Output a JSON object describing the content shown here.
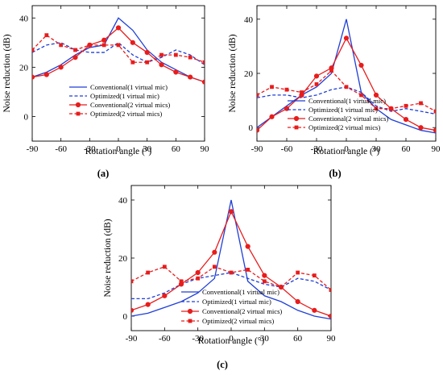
{
  "chart_data": [
    {
      "type": "line",
      "panel_label": "(a)",
      "xlabel": "Rotation angle (°)",
      "ylabel": "Noise reduction (dB)",
      "xlim": [
        -90,
        90
      ],
      "ylim": [
        -10,
        45
      ],
      "xticks": [
        -90,
        -60,
        -30,
        0,
        30,
        60,
        90
      ],
      "yticks": [
        0,
        20,
        40
      ],
      "legend_position": "bottom-right",
      "series": [
        {
          "name": "Conventional(1 virtual mic)",
          "color": "#1f3fd6",
          "dash": "solid",
          "marker": "none",
          "x": [
            -90,
            -75,
            -60,
            -45,
            -30,
            -15,
            0,
            15,
            30,
            45,
            60,
            75,
            90
          ],
          "y": [
            16,
            18,
            21,
            25,
            28,
            29,
            40,
            35,
            27,
            22,
            19,
            16,
            14
          ]
        },
        {
          "name": "Optimized(1 virtual mic)",
          "color": "#1f3fd6",
          "dash": "dashed",
          "marker": "none",
          "x": [
            -90,
            -75,
            -60,
            -45,
            -30,
            -15,
            0,
            15,
            30,
            45,
            60,
            75,
            90
          ],
          "y": [
            26,
            29,
            30,
            27,
            26,
            26,
            30,
            25,
            22,
            24,
            27,
            25,
            21
          ]
        },
        {
          "name": "Conventional(2 virtual mics)",
          "color": "#e81c1c",
          "dash": "solid",
          "marker": "circle",
          "x": [
            -90,
            -75,
            -60,
            -45,
            -30,
            -15,
            0,
            15,
            30,
            45,
            60,
            75,
            90
          ],
          "y": [
            16,
            17,
            20,
            24,
            29,
            31,
            36,
            30,
            26,
            21,
            18,
            16,
            14
          ]
        },
        {
          "name": "Optimized(2 virtual mics)",
          "color": "#e81c1c",
          "dash": "dashed",
          "marker": "square",
          "x": [
            -90,
            -75,
            -60,
            -45,
            -30,
            -15,
            0,
            15,
            30,
            45,
            60,
            75,
            90
          ],
          "y": [
            27,
            33,
            29,
            27,
            29,
            29,
            29,
            22,
            22,
            25,
            25,
            24,
            22
          ]
        }
      ]
    },
    {
      "type": "line",
      "panel_label": "(b)",
      "xlabel": "Rotation angle (°)",
      "ylabel": "Noise reduction (dB)",
      "xlim": [
        -90,
        90
      ],
      "ylim": [
        -5,
        45
      ],
      "xticks": [
        -90,
        -60,
        -30,
        0,
        30,
        60,
        90
      ],
      "yticks": [
        0,
        20,
        40
      ],
      "legend_position": "bottom-right",
      "series": [
        {
          "name": "Conventional(1 virtual mic)",
          "color": "#1f3fd6",
          "dash": "solid",
          "marker": "none",
          "x": [
            -90,
            -75,
            -60,
            -45,
            -30,
            -15,
            0,
            15,
            30,
            45,
            60,
            75,
            90
          ],
          "y": [
            0,
            4,
            8,
            12,
            15,
            20,
            40,
            13,
            7,
            3,
            1,
            -1,
            -2
          ]
        },
        {
          "name": "Optimized(1 virtual mic)",
          "color": "#1f3fd6",
          "dash": "dashed",
          "marker": "none",
          "x": [
            -90,
            -75,
            -60,
            -45,
            -30,
            -15,
            0,
            15,
            30,
            45,
            60,
            75,
            90
          ],
          "y": [
            11,
            12,
            12,
            11,
            12,
            14,
            15,
            13,
            8,
            6,
            7,
            6,
            5
          ]
        },
        {
          "name": "Conventional(2 virtual mics)",
          "color": "#e81c1c",
          "dash": "solid",
          "marker": "circle",
          "x": [
            -90,
            -75,
            -60,
            -45,
            -30,
            -15,
            0,
            15,
            30,
            45,
            60,
            75,
            90
          ],
          "y": [
            -1,
            4,
            7,
            12,
            19,
            22,
            33,
            23,
            12,
            7,
            3,
            0,
            -1
          ]
        },
        {
          "name": "Optimized(2 virtual mics)",
          "color": "#e81c1c",
          "dash": "dashed",
          "marker": "square",
          "x": [
            -90,
            -75,
            -60,
            -45,
            -30,
            -15,
            0,
            15,
            30,
            45,
            60,
            75,
            90
          ],
          "y": [
            12,
            15,
            14,
            13,
            16,
            21,
            15,
            12,
            7,
            7,
            8,
            9,
            6
          ]
        }
      ]
    },
    {
      "type": "line",
      "panel_label": "(c)",
      "xlabel": "Rotation angle (°)",
      "ylabel": "Noise reduction (dB)",
      "xlim": [
        -90,
        90
      ],
      "ylim": [
        -5,
        45
      ],
      "xticks": [
        -90,
        -60,
        -30,
        0,
        30,
        60,
        90
      ],
      "yticks": [
        0,
        20,
        40
      ],
      "legend_position": "bottom-center",
      "series": [
        {
          "name": "Conventional(1 virtual mic)",
          "color": "#1f3fd6",
          "dash": "solid",
          "marker": "none",
          "x": [
            -90,
            -75,
            -60,
            -45,
            -30,
            -15,
            0,
            15,
            30,
            45,
            60,
            75,
            90
          ],
          "y": [
            0,
            1,
            3,
            5,
            8,
            13,
            40,
            12,
            7,
            5,
            2,
            0,
            -1
          ]
        },
        {
          "name": "Optimized(1 virtual mic)",
          "color": "#1f3fd6",
          "dash": "dashed",
          "marker": "none",
          "x": [
            -90,
            -75,
            -60,
            -45,
            -30,
            -15,
            0,
            15,
            30,
            45,
            60,
            75,
            90
          ],
          "y": [
            6,
            6,
            8,
            11,
            13,
            14,
            15,
            13,
            11,
            10,
            13,
            12,
            9
          ]
        },
        {
          "name": "Conventional(2 virtual mics)",
          "color": "#e81c1c",
          "dash": "solid",
          "marker": "circle",
          "x": [
            -90,
            -75,
            -60,
            -45,
            -30,
            -15,
            0,
            15,
            30,
            45,
            60,
            75,
            90
          ],
          "y": [
            2,
            4,
            7,
            11,
            15,
            22,
            36,
            24,
            14,
            10,
            5,
            2,
            0
          ]
        },
        {
          "name": "Optimized(2 virtual mics)",
          "color": "#e81c1c",
          "dash": "dashed",
          "marker": "square",
          "x": [
            -90,
            -75,
            -60,
            -45,
            -30,
            -15,
            0,
            15,
            30,
            45,
            60,
            75,
            90
          ],
          "y": [
            12,
            15,
            17,
            12,
            13,
            17,
            15,
            16,
            12,
            10,
            15,
            14,
            9
          ]
        }
      ]
    }
  ]
}
